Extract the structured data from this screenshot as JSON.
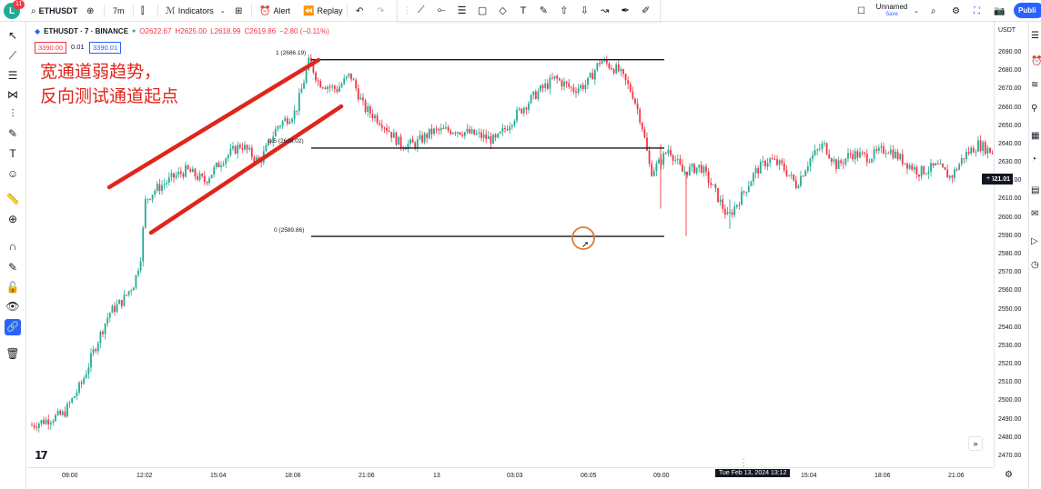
{
  "topbar": {
    "notifications": "11",
    "symbol": "ETHUSDT",
    "interval": "7m",
    "indicators": "Indicators",
    "alert": "Alert",
    "replay": "Replay",
    "layout_name": "Unnamed",
    "save_label": "Save",
    "publish": "Publi"
  },
  "legend": {
    "symbol_full": "ETHUSDT · 7 · BINANCE",
    "open": "O2622.67",
    "high": "H2625.00",
    "low": "L2618.99",
    "close": "C2619.86",
    "change": "−2.80 (−0.11%)",
    "bid": "3390.00",
    "spread": "0.01",
    "ask": "3390.01"
  },
  "annotation": {
    "line1": "宽通道弱趋势，",
    "line2": "反向测试通道起点"
  },
  "fib": {
    "level_1": "1 (2686.19)",
    "level_05": "0.5 (2638.02)",
    "level_0": "0 (2589.86)"
  },
  "price_scale": {
    "currency": "USDT",
    "ticks": [
      "2690.00",
      "2680.00",
      "2670.00",
      "2660.00",
      "2650.00",
      "2640.00",
      "2630.00",
      "2620.00",
      "2610.00",
      "2600.00",
      "2590.00",
      "2580.00",
      "2570.00",
      "2560.00",
      "2550.00",
      "2540.00",
      "2530.00",
      "2520.00",
      "2510.00",
      "2500.00",
      "2490.00",
      "2480.00",
      "2470.00"
    ],
    "current": "2621.01"
  },
  "time_axis": {
    "ticks": [
      "09:00",
      "12:02",
      "15:04",
      "18:06",
      "21:06",
      "13",
      "03:03",
      "06:05",
      "09:00",
      "15:04",
      "18:06",
      "21:06"
    ],
    "crosshair": "Tue Feb 13, 2024   13:12"
  },
  "colors": {
    "up": "#22ab94",
    "down": "#f23645",
    "annotation": "#e0251b",
    "accent": "#2962ff"
  }
}
